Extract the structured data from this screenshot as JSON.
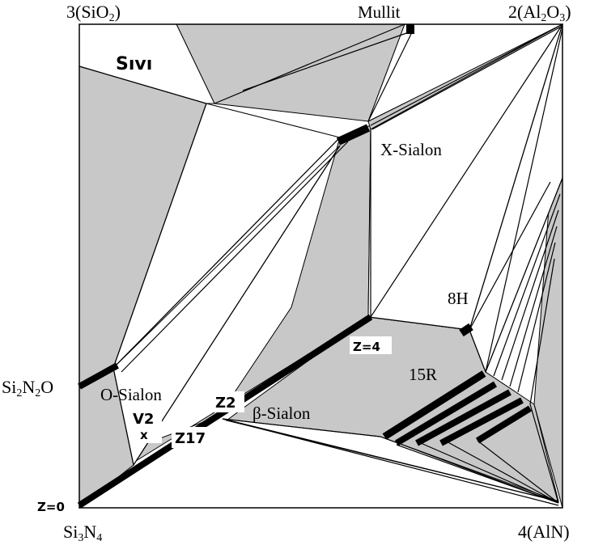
{
  "corners": {
    "top_left": "3(SiO",
    "top_left_sub": "2",
    "top_left_close": ")",
    "top_right_a": "2(Al",
    "top_right_sub1": "2",
    "top_right_b": "O",
    "top_right_sub2": "3",
    "top_right_close": ")",
    "bottom_left_a": "Si",
    "bottom_left_sub1": "3",
    "bottom_left_b": "N",
    "bottom_left_sub2": "4",
    "bottom_right": "4(AlN)",
    "left_mid_a": "Si",
    "left_mid_sub1": "2",
    "left_mid_b": "N",
    "left_mid_sub2": "2",
    "left_mid_c": "O"
  },
  "phases": {
    "mullit": "Mullit",
    "sivi": "Sıvı",
    "x_sialon": "X-Sialon",
    "o_sialon": "O-Sialon",
    "beta_sialon": "β-Sialon",
    "h8": "8H",
    "r15": "15R"
  },
  "markers": {
    "z4": "Z=4",
    "z0": "Z=0",
    "z2": "Z2",
    "z17": "Z17",
    "v2": "V2",
    "v2_mark": "x"
  },
  "colors": {
    "shaded_region": "#c8c8c8",
    "line": "#000000",
    "background": "#ffffff"
  }
}
